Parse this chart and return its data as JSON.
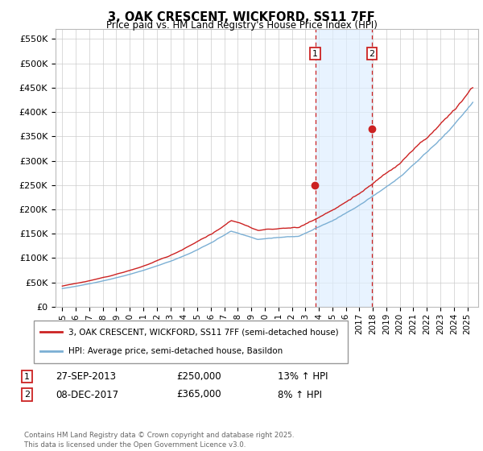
{
  "title": "3, OAK CRESCENT, WICKFORD, SS11 7FF",
  "subtitle": "Price paid vs. HM Land Registry's House Price Index (HPI)",
  "ylim": [
    0,
    570000
  ],
  "yticks": [
    0,
    50000,
    100000,
    150000,
    200000,
    250000,
    300000,
    350000,
    400000,
    450000,
    500000,
    550000
  ],
  "ytick_labels": [
    "£0",
    "£50K",
    "£100K",
    "£150K",
    "£200K",
    "£250K",
    "£300K",
    "£350K",
    "£400K",
    "£450K",
    "£500K",
    "£550K"
  ],
  "hpi_color": "#7bafd4",
  "price_color": "#cc2222",
  "sale1_date": 2013.74,
  "sale1_price": 250000,
  "sale1_label": "1",
  "sale2_date": 2017.93,
  "sale2_price": 365000,
  "sale2_label": "2",
  "sale1_date_str": "27-SEP-2013",
  "sale1_price_str": "£250,000",
  "sale1_hpi_str": "13% ↑ HPI",
  "sale2_date_str": "08-DEC-2017",
  "sale2_price_str": "£365,000",
  "sale2_hpi_str": "8% ↑ HPI",
  "legend_line1": "3, OAK CRESCENT, WICKFORD, SS11 7FF (semi-detached house)",
  "legend_line2": "HPI: Average price, semi-detached house, Basildon",
  "footnote": "Contains HM Land Registry data © Crown copyright and database right 2025.\nThis data is licensed under the Open Government Licence v3.0.",
  "background_color": "#ffffff",
  "grid_color": "#cccccc",
  "shade_color": "#ddeeff",
  "xmin": 1994.5,
  "xmax": 2025.8
}
